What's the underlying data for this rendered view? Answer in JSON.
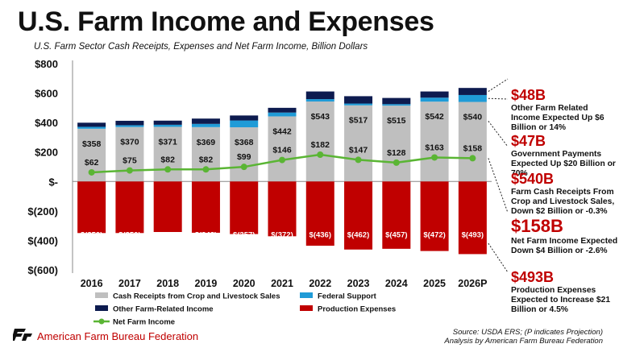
{
  "header": {
    "title": "U.S. Farm Income and Expenses",
    "subtitle": "U.S. Farm Sector Cash Receipts, Expenses and Net Farm Income, Billion Dollars"
  },
  "annotations": [
    {
      "value": "$48B",
      "text": "Other Farm Related Income Expected Up $6 Billion or 14%"
    },
    {
      "value": "$47B",
      "text": "Government Payments Expected Up $20 Billion or 70%"
    },
    {
      "value": "$540B",
      "text": "Farm Cash Receipts From Crop and Livestock Sales, Down $2 Billion or -0.3%"
    },
    {
      "value": "$158B",
      "text": "Net Farm Income Expected Down $4 Billion or -2.6%"
    },
    {
      "value": "$493B",
      "text": "Production Expenses Expected to Increase $21 Billion or 4.5%"
    }
  ],
  "footer": {
    "brand": "American Farm Bureau Federation",
    "source_line1": "Source: USDA ERS; (P indicates Projection)",
    "source_line2": "Analysis by American Farm Bureau Federation"
  },
  "colors": {
    "cash_receipts": "#bfbfbf",
    "federal_support": "#1f9bd7",
    "other_income": "#0d1b4f",
    "production_expenses": "#c00000",
    "net_farm_income": "#5ab534",
    "accent": "#c00000"
  },
  "chart_data": {
    "type": "bar",
    "categories": [
      "2016",
      "2017",
      "2018",
      "2019",
      "2020",
      "2021",
      "2022",
      "2023",
      "2024",
      "2025",
      "2026P"
    ],
    "ylim": [
      -600,
      800
    ],
    "yticks": [
      800,
      600,
      400,
      200,
      0,
      -200,
      -400,
      -600
    ],
    "ytick_labels": [
      "$800",
      "$600",
      "$400",
      "$200",
      "$-",
      "$(200)",
      "$(400)",
      "$(600)"
    ],
    "grid": false,
    "legend_position": "bottom",
    "series": [
      {
        "name": "Cash Receipts from Crop and Livestock Sales",
        "kind": "stacked-bar",
        "values": [
          358,
          370,
          371,
          369,
          368,
          442,
          543,
          517,
          515,
          542,
          540
        ],
        "labels": [
          "$358",
          "$370",
          "$371",
          "$369",
          "$368",
          "$442",
          "$543",
          "$517",
          "$515",
          "$542",
          "$540"
        ]
      },
      {
        "name": "Federal Support",
        "kind": "stacked-bar",
        "values": [
          13,
          12,
          14,
          22,
          46,
          26,
          16,
          12,
          10,
          27,
          47
        ]
      },
      {
        "name": "Other Farm-Related Income",
        "kind": "stacked-bar",
        "values": [
          28,
          30,
          28,
          36,
          34,
          32,
          52,
          50,
          42,
          42,
          48
        ]
      },
      {
        "name": "Production Expenses",
        "kind": "bar",
        "values": [
          -350,
          -350,
          -343,
          -348,
          -357,
          -372,
          -436,
          -462,
          -457,
          -472,
          -493
        ],
        "labels": [
          "$(350)",
          "$(350)",
          "$(343)",
          "$(348)",
          "$(357)",
          "$(372)",
          "$(436)",
          "$(462)",
          "$(457)",
          "$(472)",
          "$(493)"
        ]
      },
      {
        "name": "Net Farm Income",
        "kind": "line",
        "values": [
          62,
          75,
          82,
          82,
          99,
          146,
          182,
          147,
          128,
          163,
          158
        ],
        "labels": [
          "$62",
          "$75",
          "$82",
          "$82",
          "$99",
          "$146",
          "$182",
          "$147",
          "$128",
          "$163",
          "$158"
        ]
      }
    ]
  }
}
